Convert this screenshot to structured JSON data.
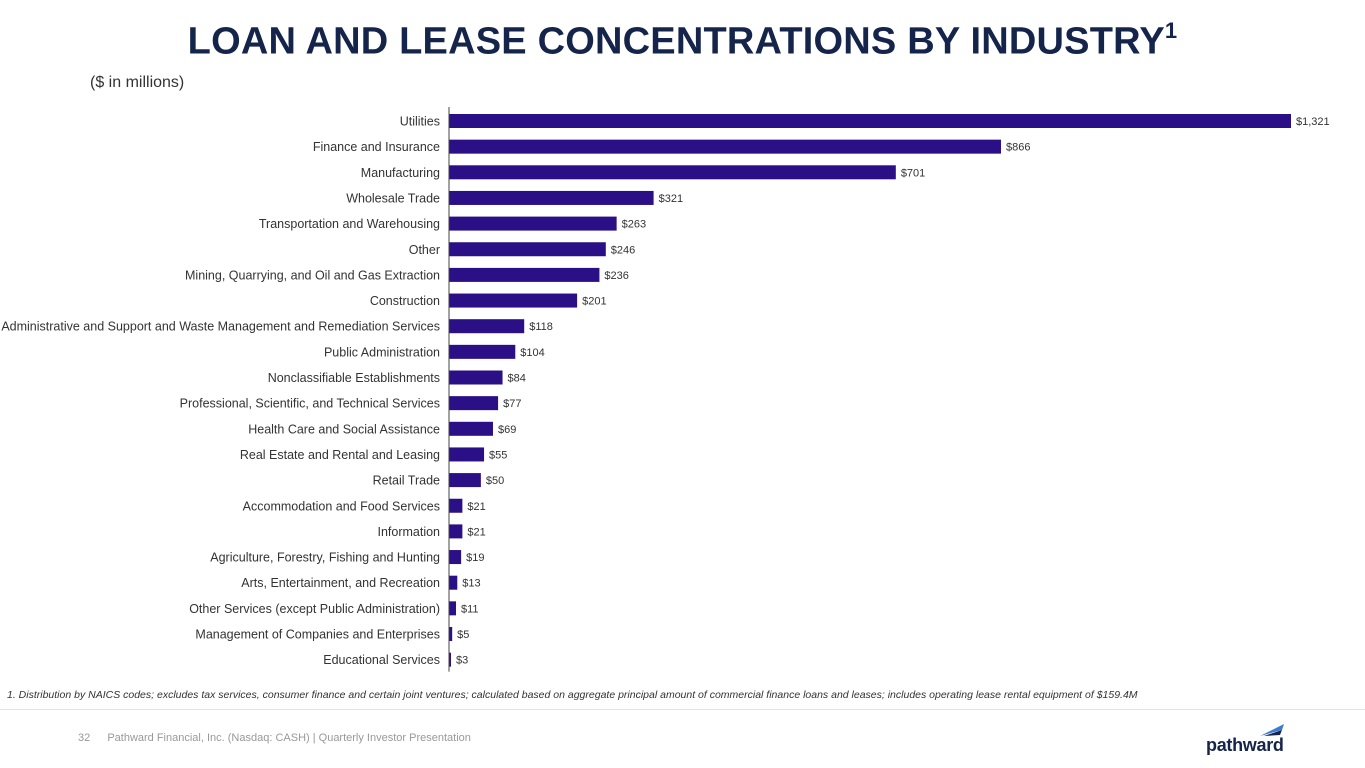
{
  "page": {
    "title": "LOAN AND LEASE CONCENTRATIONS BY INDUSTRY",
    "title_superscript": "1",
    "subtitle": "($ in millions)",
    "footnote": "1. Distribution by NAICS codes; excludes tax services, consumer finance and certain joint ventures; calculated based on aggregate principal amount of commercial finance loans and leases; includes operating lease rental equipment of $159.4M",
    "page_number": "32",
    "footer_text": "Pathward Financial, Inc. (Nasdaq: CASH) | Quarterly Investor Presentation",
    "logo_text": "pathward",
    "accent_color": "#14244a",
    "bar_color": "#2a0f86"
  },
  "chart_data": {
    "type": "bar",
    "orientation": "horizontal",
    "categories": [
      "Utilities",
      "Finance and Insurance",
      "Manufacturing",
      "Wholesale Trade",
      "Transportation and Warehousing",
      "Other",
      "Mining, Quarrying, and Oil and Gas Extraction",
      "Construction",
      "Administrative and Support and Waste Management and Remediation Services",
      "Public Administration",
      "Nonclassifiable Establishments",
      "Professional, Scientific, and Technical Services",
      "Health Care and Social Assistance",
      "Real Estate and Rental and Leasing",
      "Retail Trade",
      "Accommodation and Food Services",
      "Information",
      "Agriculture, Forestry, Fishing and Hunting",
      "Arts, Entertainment, and Recreation",
      "Other Services (except Public Administration)",
      "Management of Companies and Enterprises",
      "Educational Services"
    ],
    "values": [
      1321,
      866,
      701,
      321,
      263,
      246,
      236,
      201,
      118,
      104,
      84,
      77,
      69,
      55,
      50,
      21,
      21,
      19,
      13,
      11,
      5,
      3
    ],
    "value_labels": [
      "$1,321",
      "$866",
      "$701",
      "$321",
      "$263",
      "$246",
      "$236",
      "$201",
      "$118",
      "$104",
      "$84",
      "$77",
      "$69",
      "$55",
      "$50",
      "$21",
      "$21",
      "$19",
      "$13",
      "$11",
      "$5",
      "$3"
    ],
    "xlim": [
      0,
      1321
    ],
    "grid": false,
    "legend": "none"
  }
}
